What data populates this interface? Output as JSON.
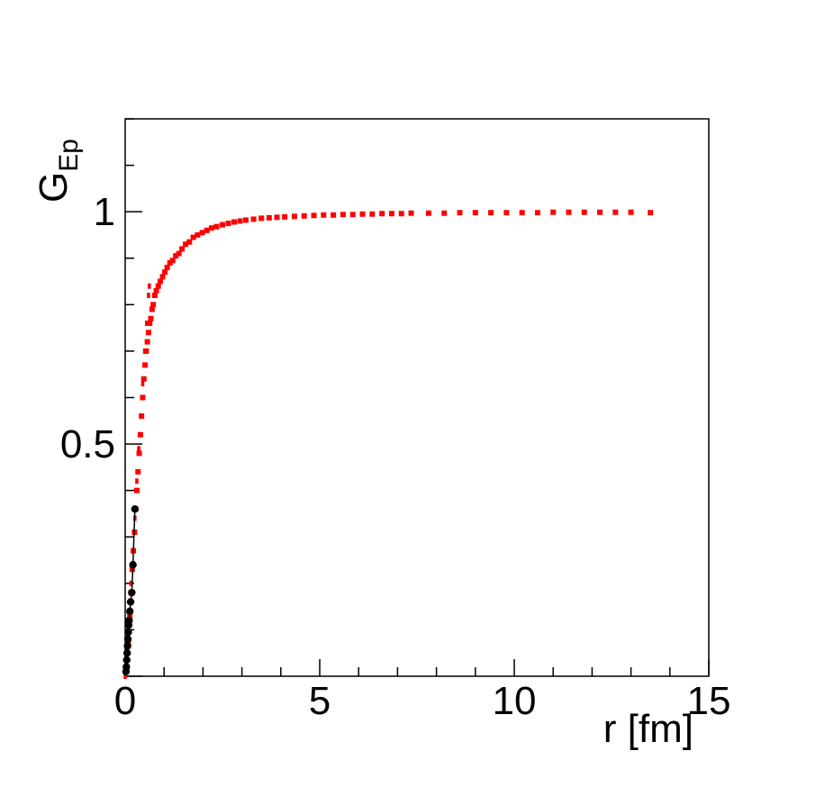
{
  "chart_data": {
    "type": "scatter",
    "title": "",
    "xlabel": "r [fm]",
    "ylabel": {
      "main": "G",
      "subscript": "Ep"
    },
    "xlim": [
      0,
      15
    ],
    "ylim": [
      0,
      1.2
    ],
    "x_ticks": [
      0,
      5,
      10,
      15
    ],
    "x_tick_labels": [
      "0",
      "5",
      "10",
      "15"
    ],
    "y_ticks": [
      0.5,
      1
    ],
    "y_tick_labels": [
      "0.5",
      "1"
    ],
    "grid": false,
    "colors": {
      "red_series": "#ff0000",
      "black_series": "#000000",
      "frame": "#000000"
    },
    "series": [
      {
        "marker": "square",
        "color": "#ff0000",
        "x": [
          0.05,
          0.08,
          0.12,
          0.15,
          0.18,
          0.21,
          0.24,
          0.27,
          0.3,
          0.33,
          0.36,
          0.39,
          0.42,
          0.45,
          0.48,
          0.51,
          0.54,
          0.57,
          0.6,
          0.63,
          0.66,
          0.69,
          0.72,
          0.76,
          0.8,
          0.85,
          0.9,
          0.96,
          1.02,
          1.08,
          1.15,
          1.22,
          1.3,
          1.38,
          1.46,
          1.55,
          1.65,
          1.75,
          1.86,
          1.98,
          2.1,
          2.22,
          2.35,
          2.5,
          2.65,
          2.8,
          2.95,
          3.1,
          3.3,
          3.5,
          3.7,
          3.9,
          4.1,
          4.35,
          4.6,
          4.85,
          5.1,
          5.35,
          5.6,
          5.85,
          6.1,
          6.35,
          6.6,
          6.85,
          7.1,
          7.35,
          7.8,
          8.2,
          8.6,
          9.0,
          9.4,
          9.8,
          10.2,
          10.6,
          11.0,
          11.4,
          11.8,
          12.2,
          12.6,
          13.0,
          13.5
        ],
        "y": [
          0.02,
          0.07,
          0.13,
          0.18,
          0.23,
          0.27,
          0.31,
          0.36,
          0.4,
          0.44,
          0.48,
          0.52,
          0.56,
          0.6,
          0.64,
          0.67,
          0.7,
          0.72,
          0.74,
          0.76,
          0.77,
          0.79,
          0.8,
          0.82,
          0.83,
          0.84,
          0.85,
          0.86,
          0.87,
          0.88,
          0.89,
          0.895,
          0.905,
          0.91,
          0.92,
          0.93,
          0.935,
          0.945,
          0.95,
          0.955,
          0.96,
          0.965,
          0.968,
          0.972,
          0.975,
          0.978,
          0.98,
          0.982,
          0.984,
          0.986,
          0.987,
          0.988,
          0.989,
          0.99,
          0.991,
          0.992,
          0.993,
          0.993,
          0.994,
          0.994,
          0.995,
          0.995,
          0.996,
          0.996,
          0.996,
          0.997,
          0.997,
          0.997,
          0.998,
          0.998,
          0.998,
          0.998,
          0.998,
          0.998,
          0.999,
          0.999,
          0.999,
          0.999,
          0.999,
          0.999,
          0.998
        ]
      },
      {
        "marker": "dotted-line",
        "color": "#ff0000",
        "x": [
          0.0,
          0.05,
          0.1,
          0.15,
          0.2,
          0.25,
          0.3,
          0.35,
          0.4,
          0.45,
          0.5,
          0.55,
          0.6,
          0.62
        ],
        "y": [
          0.0,
          0.06,
          0.13,
          0.2,
          0.27,
          0.34,
          0.42,
          0.49,
          0.56,
          0.63,
          0.7,
          0.76,
          0.82,
          0.84
        ]
      },
      {
        "marker": "circle",
        "color": "#000000",
        "x": [
          0.02,
          0.03,
          0.04,
          0.05,
          0.06,
          0.07,
          0.08,
          0.09,
          0.1,
          0.12,
          0.14,
          0.17,
          0.2,
          0.25
        ],
        "y": [
          0.01,
          0.02,
          0.035,
          0.05,
          0.065,
          0.08,
          0.095,
          0.11,
          0.12,
          0.14,
          0.16,
          0.18,
          0.24,
          0.36
        ]
      }
    ]
  }
}
